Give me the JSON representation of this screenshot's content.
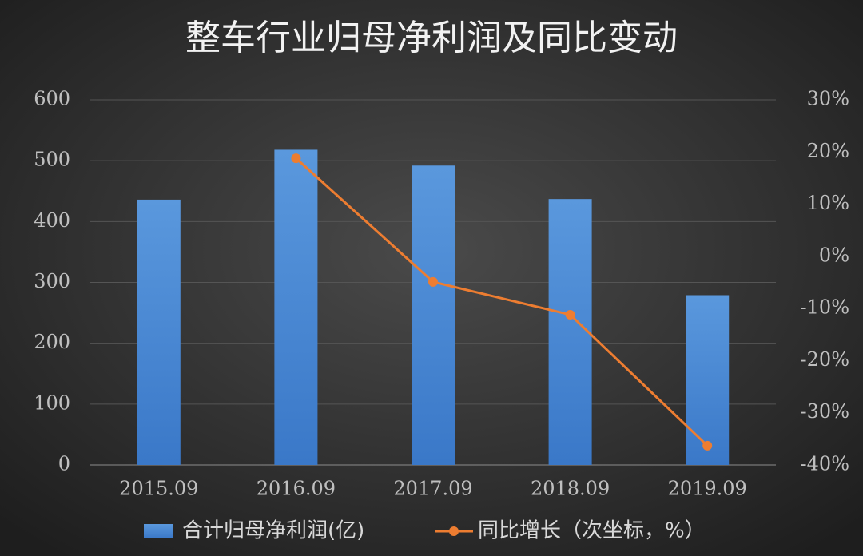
{
  "chart_data": {
    "type": "bar",
    "title": "整车行业归母净利润及同比变动",
    "categories": [
      "2015.09",
      "2016.09",
      "2017.09",
      "2018.09",
      "2019.09"
    ],
    "series": [
      {
        "name": "合计归母净利润(亿)",
        "type": "bar",
        "color": "#4a86d0",
        "values": [
          436,
          518,
          492,
          437,
          279
        ]
      },
      {
        "name": "同比增长（次坐标，%）",
        "type": "line",
        "axis": "y2",
        "color": "#ed7d31",
        "values": [
          null,
          18.8,
          -4.9,
          -11.2,
          -36.3
        ]
      }
    ],
    "ylim": [
      0,
      600
    ],
    "yticks": [
      0,
      100,
      200,
      300,
      400,
      500,
      600
    ],
    "y2lim": [
      -40,
      30
    ],
    "y2ticks": [
      {
        "value": -40,
        "label": "-40%"
      },
      {
        "value": -30,
        "label": "-30%"
      },
      {
        "value": -20,
        "label": "-20%"
      },
      {
        "value": -10,
        "label": "-10%"
      },
      {
        "value": 0,
        "label": "0%"
      },
      {
        "value": 10,
        "label": "10%"
      },
      {
        "value": 20,
        "label": "20%"
      },
      {
        "value": 30,
        "label": "30%"
      }
    ],
    "grid": true,
    "legend": "bottom"
  }
}
